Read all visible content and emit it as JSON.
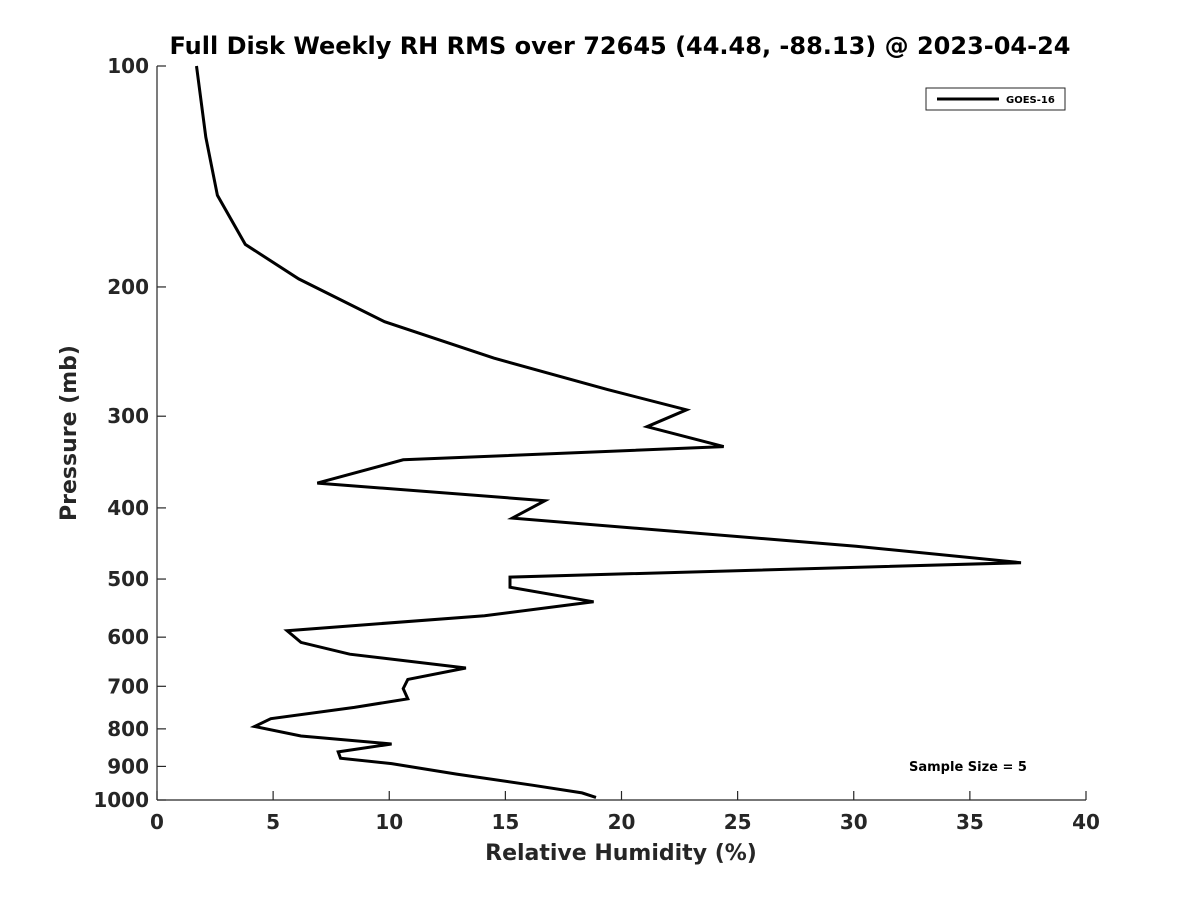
{
  "chart_data": {
    "type": "line",
    "title": "Full Disk Weekly RH RMS over 72645 (44.48, -88.13) @ 2023-04-24",
    "xlabel": "Relative Humidity (%)",
    "ylabel": "Pressure (mb)",
    "xlim": [
      0,
      40
    ],
    "ylim": [
      1000,
      100
    ],
    "yscale": "log",
    "grid": false,
    "legend_position": "top-right",
    "x_ticks": [
      0,
      5,
      10,
      15,
      20,
      25,
      30,
      35,
      40
    ],
    "y_ticks": [
      100,
      200,
      300,
      400,
      500,
      600,
      700,
      800,
      900,
      1000
    ],
    "annotation": "Sample Size = 5",
    "series": [
      {
        "name": "GOES-16",
        "color": "#000000",
        "points": [
          [
            1.7,
            100
          ],
          [
            2.1,
            125
          ],
          [
            2.6,
            150
          ],
          [
            3.8,
            175
          ],
          [
            6.1,
            195
          ],
          [
            9.8,
            223
          ],
          [
            14.5,
            250
          ],
          [
            19.4,
            276
          ],
          [
            22.8,
            294
          ],
          [
            21.1,
            310
          ],
          [
            24.4,
            330
          ],
          [
            10.6,
            344
          ],
          [
            6.9,
            370
          ],
          [
            16.7,
            391
          ],
          [
            15.3,
            413
          ],
          [
            30.1,
            451
          ],
          [
            37.2,
            475
          ],
          [
            15.2,
            497
          ],
          [
            15.2,
            513
          ],
          [
            18.8,
            537
          ],
          [
            14.1,
            561
          ],
          [
            5.6,
            588
          ],
          [
            6.2,
            610
          ],
          [
            8.3,
            633
          ],
          [
            13.3,
            661
          ],
          [
            10.8,
            685
          ],
          [
            10.6,
            705
          ],
          [
            10.8,
            728
          ],
          [
            8.5,
            748
          ],
          [
            4.9,
            775
          ],
          [
            4.2,
            794
          ],
          [
            6.2,
            818
          ],
          [
            10.1,
            839
          ],
          [
            7.8,
            860
          ],
          [
            7.9,
            877
          ],
          [
            10.1,
            892
          ],
          [
            12.9,
            922
          ],
          [
            16.2,
            955
          ],
          [
            18.3,
            978
          ],
          [
            18.9,
            992
          ]
        ]
      }
    ]
  }
}
